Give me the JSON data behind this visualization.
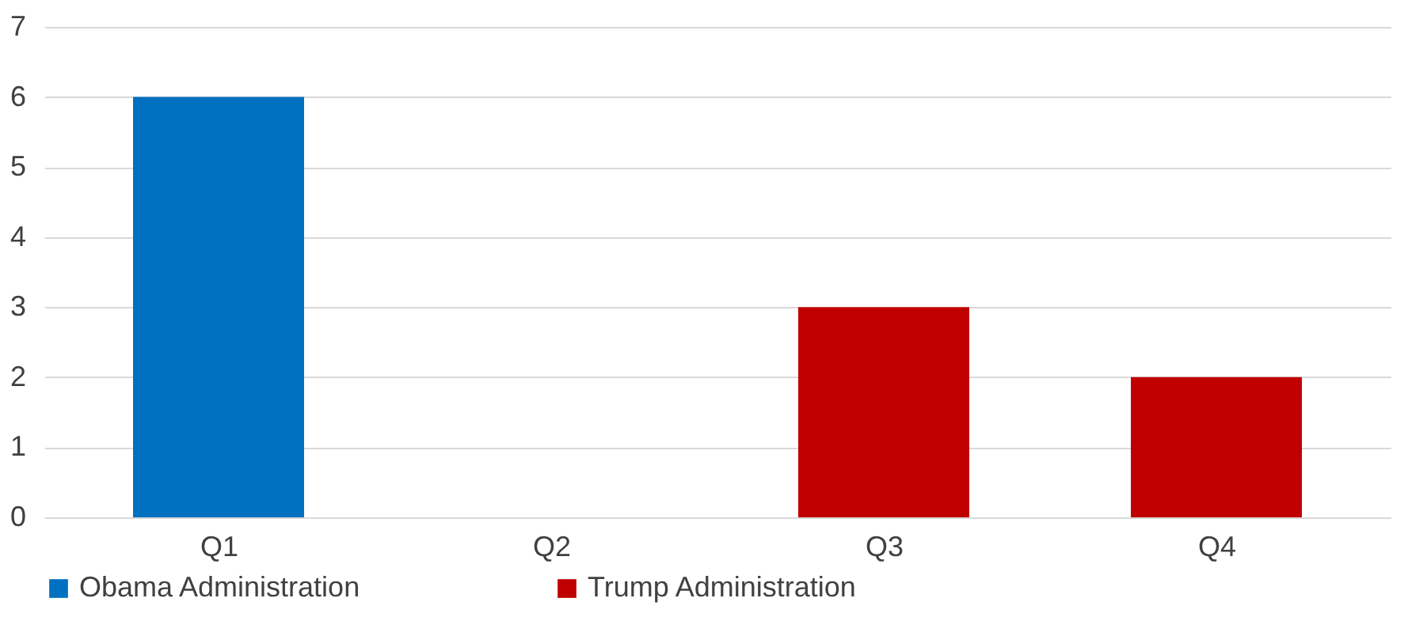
{
  "chart_data": {
    "type": "bar",
    "categories": [
      "Q1",
      "Q2",
      "Q3",
      "Q4"
    ],
    "series": [
      {
        "name": "Obama Administration",
        "color": "#0070c0",
        "values": [
          6,
          null,
          null,
          null
        ]
      },
      {
        "name": "Trump Administration",
        "color": "#c00000",
        "values": [
          null,
          null,
          3,
          2
        ]
      }
    ],
    "ylim": [
      0,
      7
    ],
    "yticks": [
      0,
      1,
      2,
      3,
      4,
      5,
      6,
      7
    ],
    "grid": "y",
    "legend": "bottom"
  }
}
